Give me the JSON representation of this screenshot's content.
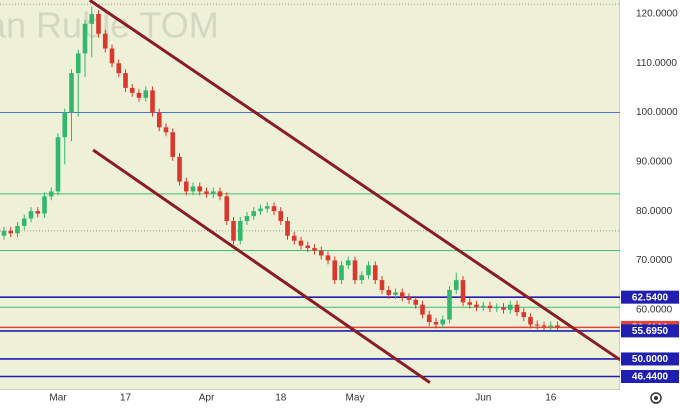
{
  "chart_data": {
    "type": "candlestick",
    "watermark": "ian Ruble TOM",
    "categories": [
      null,
      null,
      null,
      null,
      null,
      null,
      null,
      null,
      "Mar",
      null,
      null,
      null,
      null,
      null,
      null,
      null,
      null,
      null,
      "17",
      null,
      null,
      null,
      null,
      null,
      null,
      null,
      null,
      null,
      null,
      null,
      "Apr",
      null,
      null,
      null,
      null,
      null,
      null,
      null,
      null,
      null,
      null,
      "18",
      null,
      null,
      null,
      null,
      null,
      null,
      null,
      null,
      null,
      null,
      "May",
      null,
      null,
      null,
      null,
      null,
      null,
      null,
      null,
      null,
      null,
      null,
      null,
      null,
      null,
      null,
      null,
      null,
      null,
      "Jun",
      null,
      null,
      null,
      null,
      null,
      null,
      null,
      null,
      null,
      "16",
      null
    ],
    "series": [
      {
        "up_color": "#33b86b",
        "down_color": "#d9382c",
        "open": [
          75,
          76,
          75.5,
          77,
          78.5,
          80,
          79.5,
          83,
          84,
          95,
          100,
          108,
          112,
          118,
          120,
          116,
          113,
          110,
          108,
          105,
          104,
          103,
          104.5,
          100,
          97,
          96,
          91,
          86,
          84,
          85,
          84,
          83.5,
          84,
          83,
          78,
          74,
          78,
          79,
          80,
          80.5,
          81,
          80,
          78,
          75,
          74,
          73,
          72.5,
          72,
          71,
          70,
          66,
          69,
          70,
          66,
          67,
          69,
          66,
          64,
          63,
          63.5,
          62.5,
          62,
          61,
          59,
          57.5,
          57,
          58,
          64,
          66,
          61.5,
          61,
          60.5,
          60.8,
          60.3,
          60.5,
          60,
          61,
          59.5,
          58.5,
          57,
          56.8,
          56.6,
          56.8
        ],
        "high": [
          76.8,
          76.8,
          77.8,
          79.3,
          80.8,
          80.8,
          83.8,
          84.8,
          95.8,
          100.8,
          108.8,
          112.8,
          118.8,
          121.5,
          120.8,
          116.8,
          113.8,
          110.8,
          108.8,
          105.8,
          104.8,
          105.3,
          105.3,
          100.8,
          97.8,
          96.8,
          91.8,
          86.8,
          85.8,
          85.8,
          84.8,
          84.8,
          84.8,
          83.8,
          78.8,
          78.8,
          79.8,
          80.8,
          81.3,
          81.8,
          81.8,
          80.8,
          78.8,
          75.8,
          74.8,
          73.8,
          73.3,
          72.8,
          71.8,
          70.8,
          69.8,
          70.8,
          70.8,
          67.8,
          69.8,
          69.8,
          66.8,
          64.8,
          64.3,
          64.3,
          63.3,
          62.8,
          61.8,
          59.8,
          58.3,
          58.8,
          64.8,
          67.5,
          66.8,
          62.3,
          61.8,
          61.6,
          61.6,
          61.3,
          61.3,
          61.8,
          61.8,
          60.3,
          59.3,
          57.8,
          57.6,
          57.6,
          57.6
        ],
        "low": [
          74.2,
          74.7,
          74.7,
          76.2,
          77.7,
          78.7,
          78.7,
          82.2,
          83.2,
          89.5,
          94.2,
          99.2,
          107.2,
          111.2,
          115.2,
          112.2,
          109.2,
          107.2,
          104.2,
          103.2,
          102.2,
          102.2,
          99.2,
          96.2,
          95.2,
          90.2,
          85.2,
          83.2,
          83.2,
          83.2,
          82.7,
          82.7,
          82.2,
          77.2,
          73.2,
          73.2,
          77.2,
          78.2,
          79.2,
          79.7,
          79.2,
          77.2,
          74.2,
          73.2,
          72.2,
          71.7,
          71.2,
          70.2,
          69.2,
          65.2,
          65.2,
          68.2,
          65.2,
          65.2,
          66.2,
          65.2,
          63.2,
          62.2,
          62.2,
          61.7,
          61.2,
          60.2,
          58.2,
          56.7,
          56.2,
          56.2,
          57.2,
          63.2,
          60.7,
          60.2,
          59.7,
          59.7,
          59.5,
          59.5,
          59.2,
          59.2,
          58.7,
          57.7,
          56.2,
          56.0,
          55.8,
          55.8,
          55.9
        ],
        "close": [
          76,
          75.5,
          77,
          78.5,
          80,
          79.5,
          83,
          84,
          95,
          100,
          108,
          112,
          118,
          120,
          116,
          113,
          110,
          108,
          105,
          104,
          103,
          104.5,
          100,
          97,
          96,
          91,
          86,
          84,
          85,
          84,
          83.5,
          84,
          83,
          78,
          74,
          78,
          79,
          80,
          80.5,
          81,
          80,
          78,
          75,
          74,
          73,
          72.5,
          72,
          71,
          70,
          66,
          69,
          70,
          66,
          67,
          69,
          66,
          64,
          63,
          63.5,
          62.5,
          62,
          61,
          59,
          57.5,
          57,
          58,
          64,
          66,
          61.5,
          61,
          60.5,
          60.8,
          60.3,
          60.5,
          60,
          61,
          59.5,
          58.5,
          57,
          56.8,
          56.6,
          56.8,
          56.41
        ]
      }
    ],
    "ylim": [
      43.7,
      122.84
    ],
    "yticks": [
      {
        "value": 60,
        "label": "60.0000"
      },
      {
        "value": 70,
        "label": "70.0000"
      },
      {
        "value": 80,
        "label": "80.0000"
      },
      {
        "value": 90,
        "label": "90.0000"
      },
      {
        "value": 100,
        "label": "100.0000"
      },
      {
        "value": 110,
        "label": "110.0000"
      },
      {
        "value": 120,
        "label": "120.0000"
      }
    ],
    "levels": [
      {
        "value": 62.54,
        "label": "62.5400",
        "color": "#1f1fb0"
      },
      {
        "value": 56.41,
        "label": "56.4100",
        "color": "#e0443a"
      },
      {
        "value": 55.695,
        "label": "55.6950",
        "color": "#1f1fb0"
      },
      {
        "value": 50,
        "label": "50.0000",
        "color": "#1f1fb0"
      },
      {
        "value": 46.44,
        "label": "46.4400",
        "color": "#1f1fb0"
      }
    ],
    "guides": [
      {
        "value": 100,
        "color": "#4a78c8"
      },
      {
        "value": 83.5,
        "color": "#3fbf70"
      },
      {
        "value": 76,
        "color": "#9a9a9a"
      },
      {
        "value": 72,
        "color": "#3fbf70"
      },
      {
        "value": 60.5,
        "color": "#3fbf70"
      },
      {
        "value": 122,
        "color": "#9a9a9a"
      }
    ],
    "trendlines": [
      {
        "x": [
          12.7,
          91.3
        ],
        "y": [
          122.8,
          49.8
        ],
        "color": "#8b1c24"
      },
      {
        "x": [
          13.2,
          63.1
        ],
        "y": [
          92.4,
          45.2
        ],
        "color": "#8b1c24"
      }
    ]
  }
}
